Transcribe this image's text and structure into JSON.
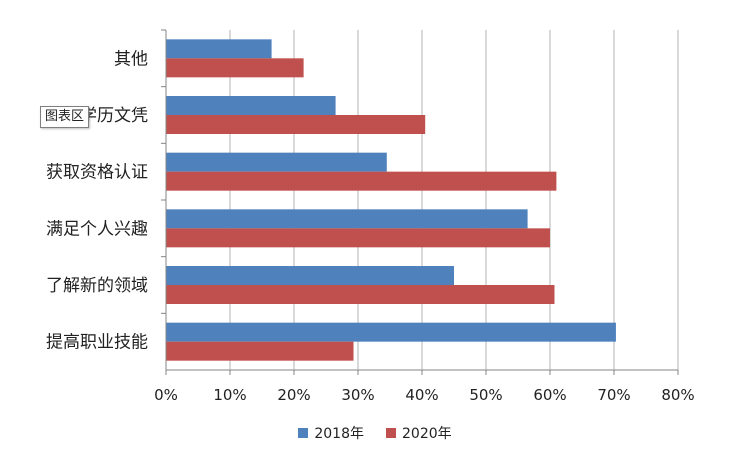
{
  "chart_data": {
    "type": "bar",
    "orientation": "horizontal",
    "categories": [
      "其他",
      "获得学历文凭",
      "获取资格认证",
      "满足个人兴趣",
      "了解新的领域",
      "提高职业技能"
    ],
    "series": [
      {
        "name": "2018年",
        "color": "#4f81bd",
        "values": [
          16.5,
          26.5,
          34.5,
          56.5,
          45,
          70.3
        ]
      },
      {
        "name": "2020年",
        "color": "#c0504d",
        "values": [
          21.5,
          40.5,
          61,
          60,
          60.7,
          29.3
        ]
      }
    ],
    "xlim": [
      0,
      80
    ],
    "xticks": [
      "0%",
      "10%",
      "20%",
      "30%",
      "40%",
      "50%",
      "60%",
      "70%",
      "80%"
    ],
    "grid": true,
    "legend_position": "bottom"
  },
  "tooltip": {
    "text": "图表区"
  }
}
